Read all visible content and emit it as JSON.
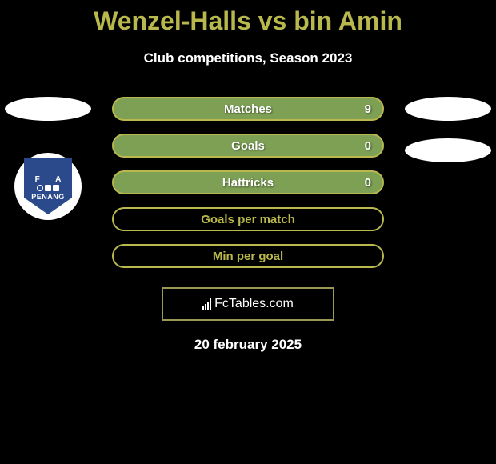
{
  "title": "Wenzel-Halls vs bin Amin",
  "subtitle": "Club competitions, Season 2023",
  "left_badge": {
    "letter_f": "F",
    "letter_a": "A",
    "name": "PENANG",
    "bg_color": "#2a4a8c"
  },
  "stats": [
    {
      "label": "Matches",
      "value_right": "9",
      "fill_color": "#7ea055",
      "border_color": "#b8b84d",
      "text_color": "#ffffff"
    },
    {
      "label": "Goals",
      "value_right": "0",
      "fill_color": "#7ea055",
      "border_color": "#b8b84d",
      "text_color": "#ffffff"
    },
    {
      "label": "Hattricks",
      "value_right": "0",
      "fill_color": "#7ea055",
      "border_color": "#b8b84d",
      "text_color": "#ffffff"
    },
    {
      "label": "Goals per match",
      "value_right": "",
      "fill_color": "transparent",
      "border_color": "#b8b84d",
      "text_color": "#b8b84d"
    },
    {
      "label": "Min per goal",
      "value_right": "",
      "fill_color": "transparent",
      "border_color": "#b8b84d",
      "text_color": "#b8b84d"
    }
  ],
  "attribution": "FcTables.com",
  "date": "20 february 2025",
  "colors": {
    "background": "#000000",
    "title": "#b8b84d",
    "text": "#ffffff",
    "ellipse": "#ffffff",
    "attr_border": "#999955"
  }
}
